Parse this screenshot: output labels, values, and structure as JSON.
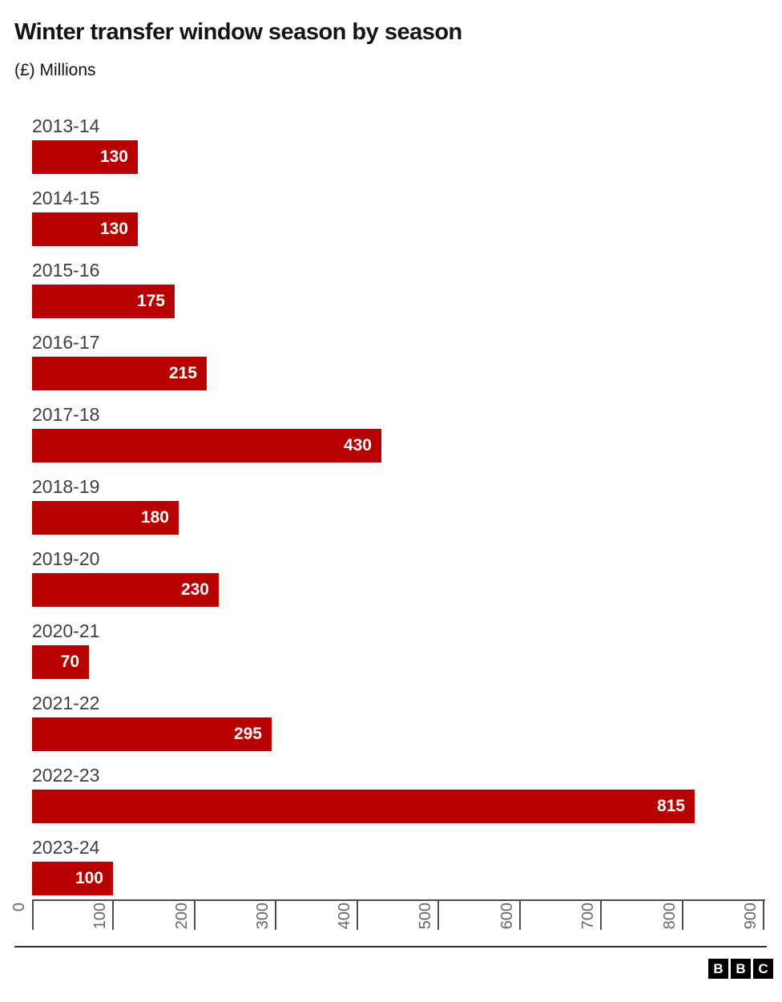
{
  "header": {
    "title": "Winter transfer window season by season",
    "subtitle": "(£) Millions"
  },
  "chart_data": {
    "type": "bar",
    "orientation": "horizontal",
    "title": "Winter transfer window season by season",
    "subtitle": "(£) Millions",
    "unit": "£ Millions",
    "categories": [
      "2013-14",
      "2014-15",
      "2015-16",
      "2016-17",
      "2017-18",
      "2018-19",
      "2019-20",
      "2020-21",
      "2021-22",
      "2022-23",
      "2023-24"
    ],
    "values": [
      130,
      130,
      175,
      215,
      430,
      180,
      230,
      70,
      295,
      815,
      100
    ],
    "xlim": [
      0,
      900
    ],
    "xticks": [
      0,
      100,
      200,
      300,
      400,
      500,
      600,
      700,
      800,
      900
    ],
    "grid": false,
    "legend": false,
    "value_labels_inside_bars": true,
    "colors": {
      "bar": "#b80000",
      "value_label": "#ffffff",
      "category_label": "#404040",
      "axis": "#4d4d4d",
      "tick_label": "#686868",
      "separator": "#333333",
      "title": "#141414"
    }
  },
  "footer": {
    "logo_letters": [
      "B",
      "B",
      "C"
    ]
  }
}
